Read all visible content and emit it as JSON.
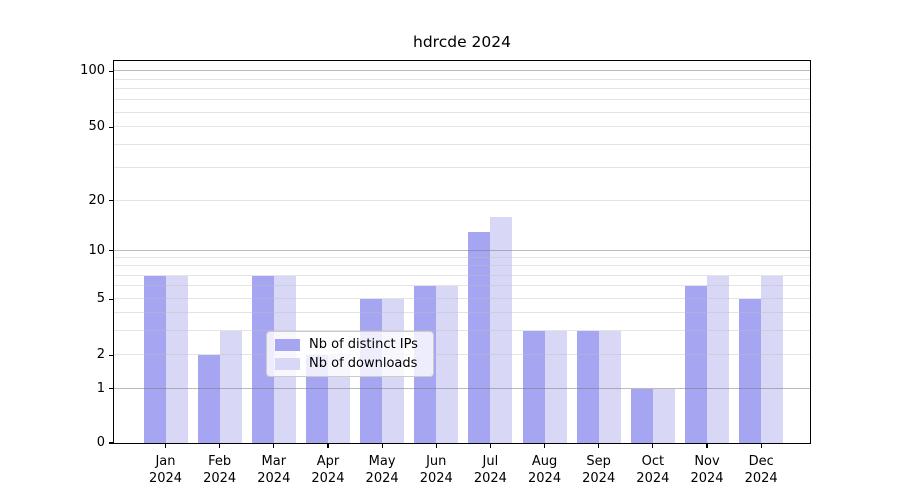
{
  "title": "hdrcde 2024",
  "chart_data": {
    "type": "bar",
    "title": "hdrcde 2024",
    "categories": [
      "Jan 2024",
      "Feb 2024",
      "Mar 2024",
      "Apr 2024",
      "May 2024",
      "Jun 2024",
      "Jul 2024",
      "Aug 2024",
      "Sep 2024",
      "Oct 2024",
      "Nov 2024",
      "Dec 2024"
    ],
    "month_labels": [
      "Jan",
      "Feb",
      "Mar",
      "Apr",
      "May",
      "Jun",
      "Jul",
      "Aug",
      "Sep",
      "Oct",
      "Nov",
      "Dec"
    ],
    "year_label": "2024",
    "series": [
      {
        "name": "Nb of distinct IPs",
        "color": "#a5a5f2",
        "values": [
          7,
          2,
          7,
          2,
          5,
          6,
          13,
          3,
          3,
          1,
          6,
          5
        ]
      },
      {
        "name": "Nb of downloads",
        "color": "#d8d8f6",
        "values": [
          7,
          3,
          7,
          2,
          5,
          6,
          16,
          3,
          3,
          1,
          7,
          7
        ]
      }
    ],
    "xlabel": "",
    "ylabel": "",
    "yscale": "log-like",
    "ylim": [
      0,
      110
    ],
    "y_major_ticks": [
      1,
      10,
      100
    ],
    "y_labeled_ticks": [
      0,
      1,
      2,
      5,
      10,
      20,
      50,
      100
    ],
    "y_minor_gridlines": [
      2,
      3,
      4,
      5,
      6,
      7,
      8,
      9,
      20,
      30,
      40,
      50,
      60,
      70,
      80,
      90
    ],
    "grid": true,
    "legend_position": "lower center",
    "colors": {
      "major_grid": "#bdbdbd",
      "minor_grid": "#e7e7e7",
      "axis": "#000000",
      "background": "#ffffff"
    }
  },
  "legend": {
    "items": [
      {
        "label": "Nb of distinct IPs"
      },
      {
        "label": "Nb of downloads"
      }
    ]
  }
}
